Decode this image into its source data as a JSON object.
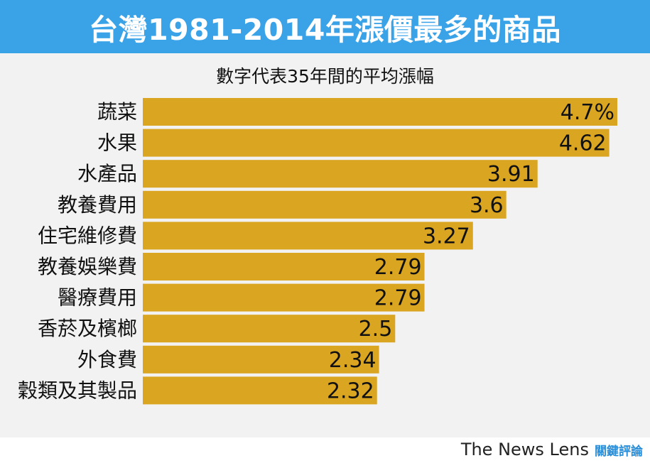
{
  "header": {
    "title": "台灣1981-2014年漲價最多的商品"
  },
  "footer": {
    "brand_en": "The News Lens",
    "brand_zh": "關鍵評論"
  },
  "colors": {
    "title_background": "#3aa3e8",
    "panel_background": "#f2f2f2",
    "bar": "#daa520"
  },
  "chart_data": {
    "type": "bar",
    "orientation": "horizontal",
    "subtitle": "數字代表35年間的平均漲幅",
    "categories": [
      "蔬菜",
      "水果",
      "水產品",
      "教養費用",
      "住宅維修費",
      "教養娛樂費",
      "醫療費用",
      "香菸及檳榔",
      "外食費",
      "穀類及其製品"
    ],
    "values": [
      4.7,
      4.62,
      3.91,
      3.6,
      3.27,
      2.79,
      2.79,
      2.5,
      2.34,
      2.32
    ],
    "value_labels": [
      "4.7%",
      "4.62",
      "3.91",
      "3.6",
      "3.27",
      "2.79",
      "2.79",
      "2.5",
      "2.34",
      "2.32"
    ],
    "xlim": [
      0,
      4.7
    ],
    "grid": false,
    "legend": "none"
  }
}
